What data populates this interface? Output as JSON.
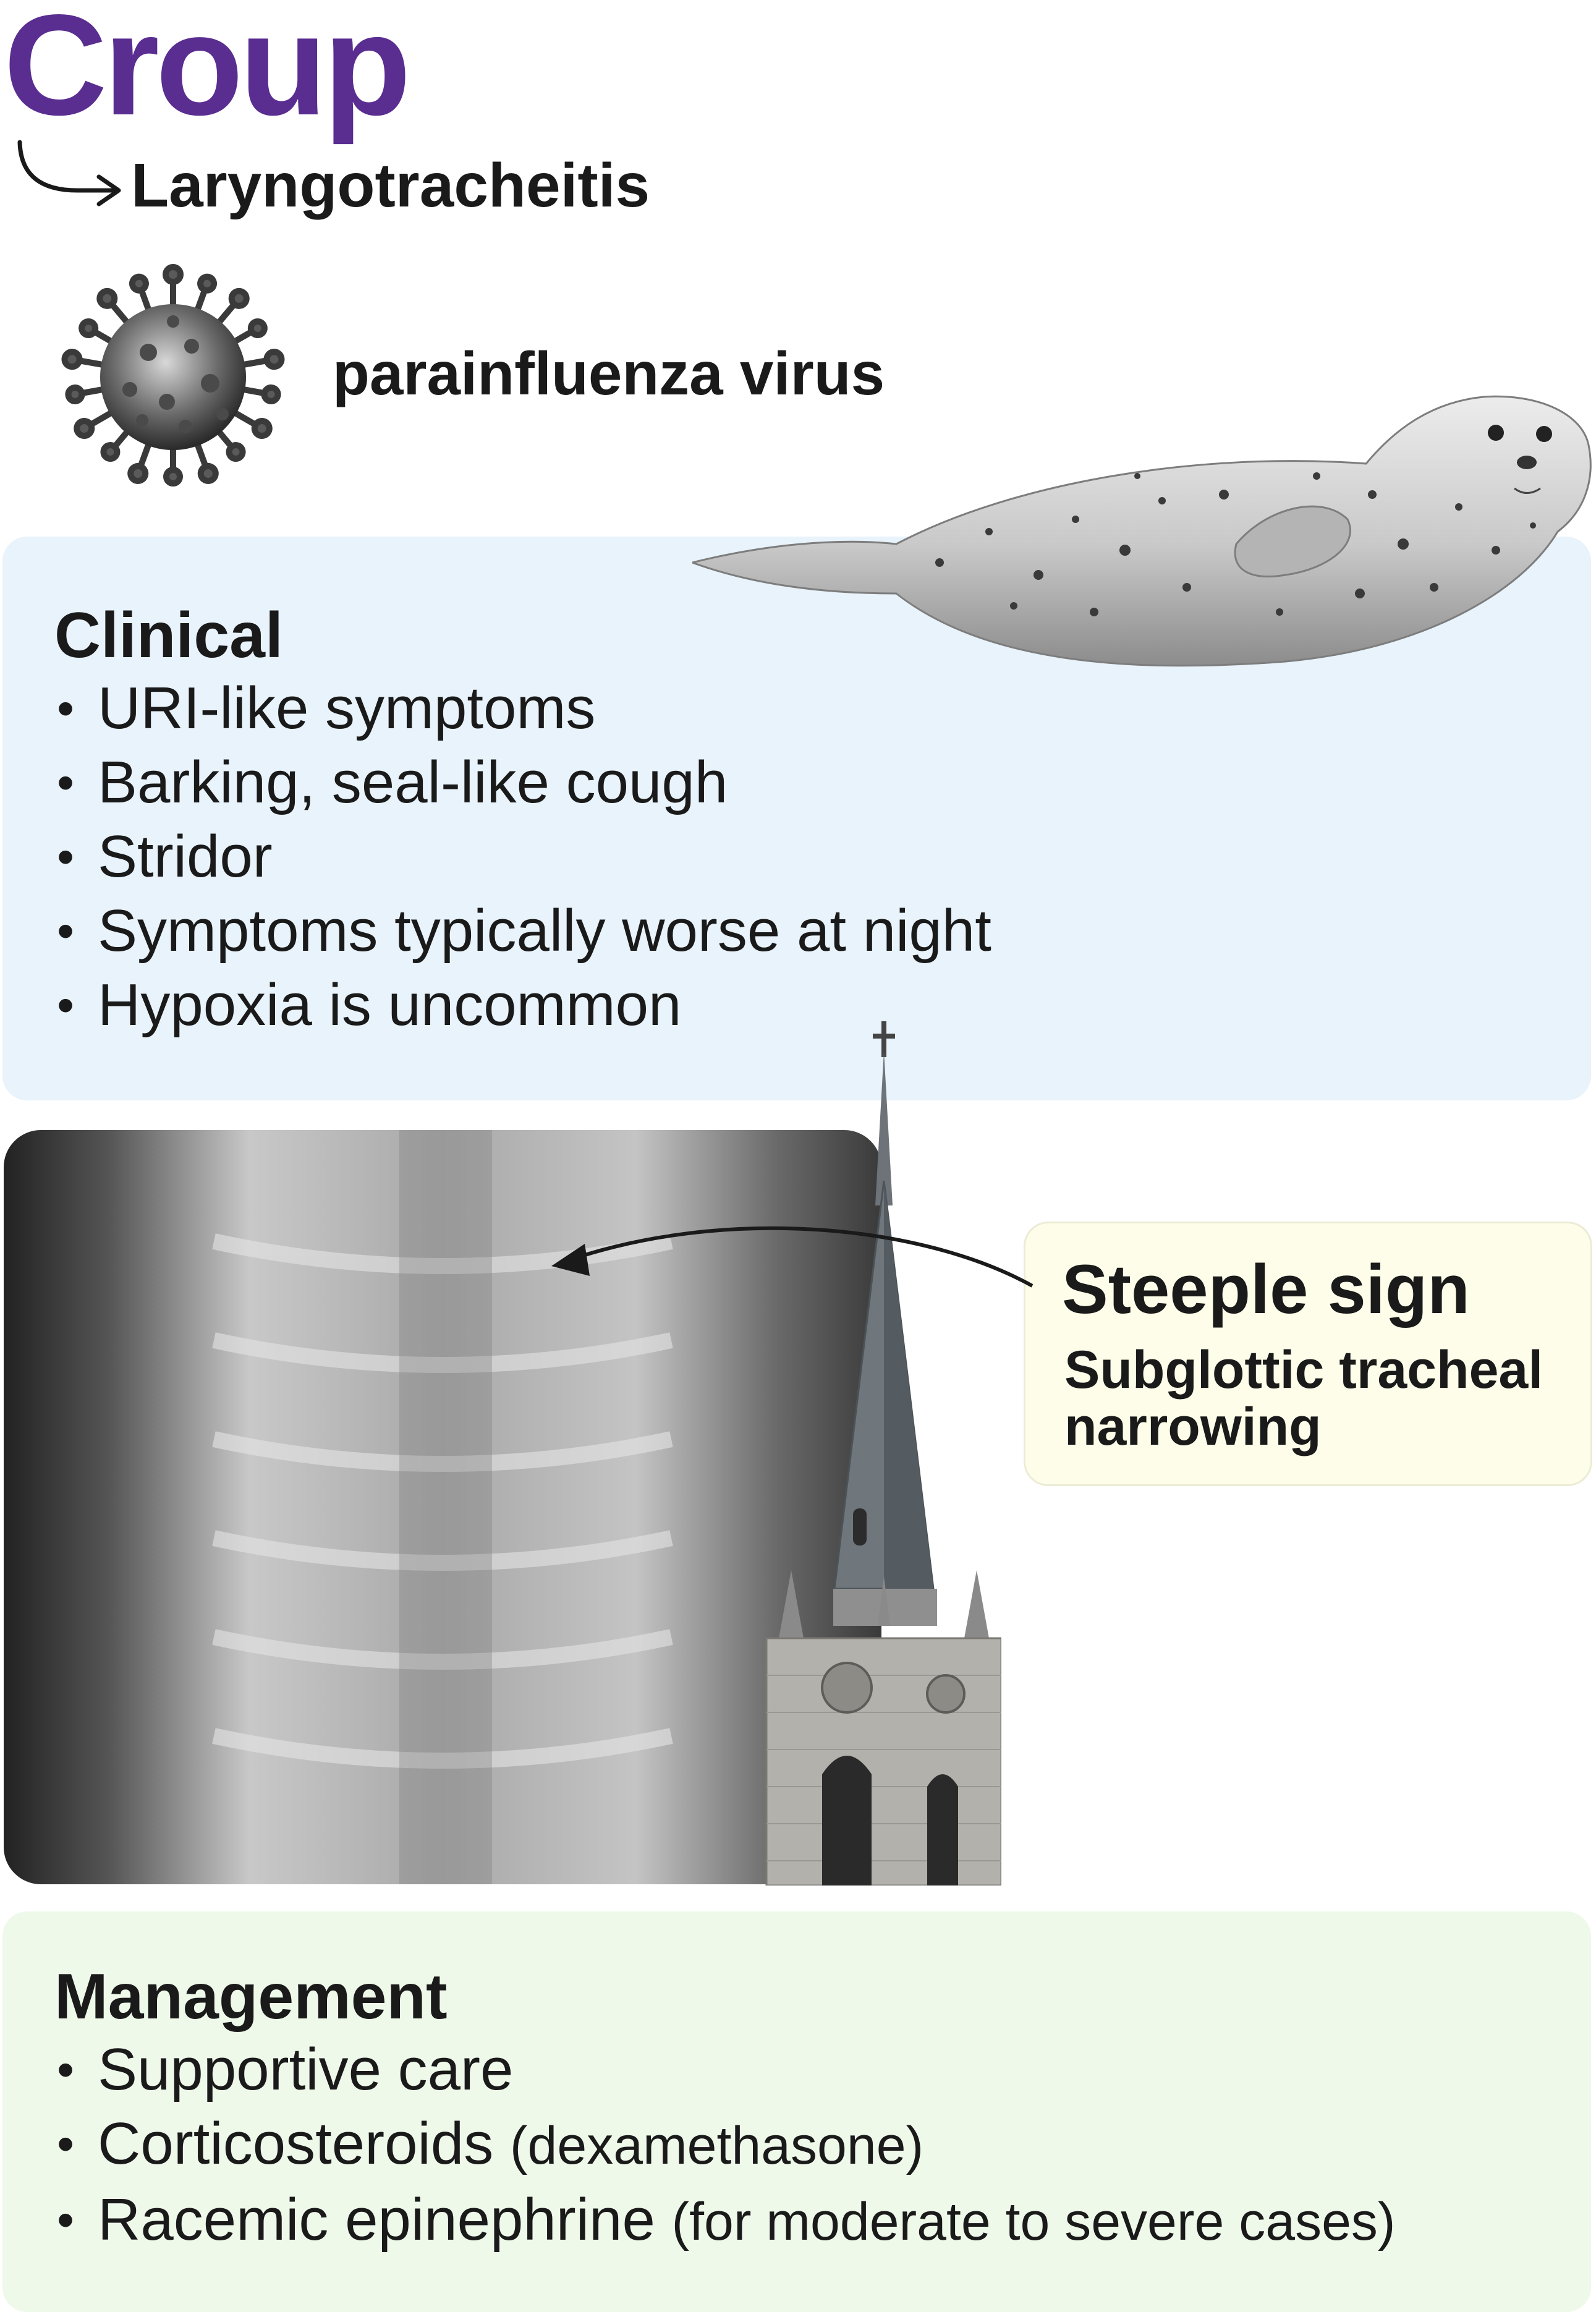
{
  "colors": {
    "title": "#5a2d91",
    "clinical_bg": "#e8f3fb",
    "management_bg": "#eef9ea",
    "steeple_bg": "#fdfde9"
  },
  "header": {
    "title": "Croup",
    "subtitle": "Laryngotracheitis"
  },
  "cause": {
    "icon": "virus-icon",
    "label": "parainfluenza virus"
  },
  "clinical": {
    "heading": "Clinical",
    "items": [
      "URI-like symptoms",
      "Barking, seal-like cough",
      "Stridor",
      "Symptoms typically worse at night",
      "Hypoxia is uncommon"
    ]
  },
  "steeple": {
    "title": "Steeple sign",
    "description": "Subglottic tracheal narrowing"
  },
  "management": {
    "heading": "Management",
    "items": [
      {
        "main": "Supportive care",
        "note": ""
      },
      {
        "main": "Corticosteroids",
        "note": "(dexamethasone)"
      },
      {
        "main": "Racemic epinephrine",
        "note": "(for moderate to severe cases)"
      }
    ]
  }
}
